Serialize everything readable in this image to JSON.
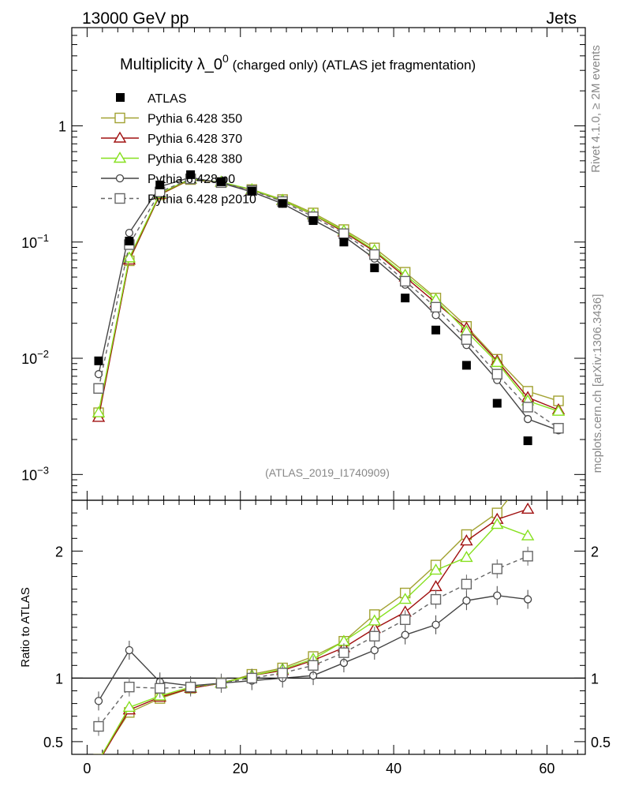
{
  "header": {
    "left": "13000 GeV pp",
    "right": "Jets"
  },
  "side": {
    "top": "Rivet 4.1.0, ≥ 2M events",
    "bottom": "mcplots.cern.ch [arXiv:1306.3436]"
  },
  "chart_data": {
    "type": "scatter",
    "title": "Multiplicity λ_0",
    "title_sup": "0",
    "title_suffix": " (charged only) (ATLAS jet fragmentation)",
    "analysis_tag": "(ATLAS_2019_I1740909)",
    "xlim": [
      -2,
      65
    ],
    "ylim_main": [
      0.0006,
      7
    ],
    "yscale_main": "log",
    "ylim_ratio": [
      0.4,
      2.4
    ],
    "ylabel_ratio": "Ratio to ATLAS",
    "x_ticks": [
      0,
      20,
      40,
      60
    ],
    "x_tick_labels": [
      "0",
      "20",
      "40",
      "60"
    ],
    "y_ticks_main": [
      1,
      0.1,
      0.01,
      0.001
    ],
    "y_tick_labels_main": [
      {
        "base": "1",
        "exp": ""
      },
      {
        "base": "10",
        "exp": "−1"
      },
      {
        "base": "10",
        "exp": "−2"
      },
      {
        "base": "10",
        "exp": "−3"
      }
    ],
    "y_ticks_ratio": [
      2,
      1,
      0.5
    ],
    "y_tick_labels_ratio": [
      "2",
      "1",
      "0.5"
    ],
    "x": [
      1.5,
      5.5,
      9.5,
      13.5,
      17.5,
      21.5,
      25.5,
      29.5,
      33.5,
      37.5,
      41.5,
      45.5,
      49.5,
      53.5,
      57.5,
      61.5
    ],
    "data": {
      "name": "ATLAS",
      "color": "#000000",
      "values": [
        0.0095,
        0.102,
        0.31,
        0.38,
        0.33,
        0.275,
        0.215,
        0.153,
        0.1,
        0.06,
        0.033,
        0.0175,
        0.0087,
        0.0041,
        0.00195,
        null
      ]
    },
    "series": [
      {
        "name": "Pythia 6.428 350",
        "color": "#a2a232",
        "marker": "square-open",
        "dash": "solid",
        "values": [
          0.0034,
          0.069,
          0.255,
          0.345,
          0.325,
          0.283,
          0.232,
          0.178,
          0.128,
          0.089,
          0.055,
          0.033,
          0.0188,
          0.0098,
          0.0052,
          0.0043
        ],
        "ratio": [
          0.36,
          0.73,
          0.84,
          0.92,
          0.96,
          1.03,
          1.08,
          1.17,
          1.29,
          1.5,
          1.67,
          1.89,
          2.13,
          2.3,
          2.6,
          null
        ]
      },
      {
        "name": "Pythia 6.428 370",
        "color": "#a01010",
        "marker": "triangle-open",
        "dash": "solid",
        "values": [
          0.0031,
          0.07,
          0.258,
          0.348,
          0.327,
          0.281,
          0.228,
          0.172,
          0.122,
          0.083,
          0.05,
          0.03,
          0.0182,
          0.0095,
          0.0046,
          0.0036
        ],
        "ratio": [
          0.34,
          0.75,
          0.85,
          0.92,
          0.96,
          1.02,
          1.06,
          1.14,
          1.24,
          1.39,
          1.52,
          1.72,
          2.08,
          2.25,
          2.33,
          null
        ]
      },
      {
        "name": "Pythia 6.428 380",
        "color": "#86e01e",
        "marker": "triangle-open",
        "dash": "solid",
        "values": [
          0.0034,
          0.073,
          0.262,
          0.35,
          0.328,
          0.283,
          0.229,
          0.173,
          0.125,
          0.085,
          0.052,
          0.032,
          0.017,
          0.0092,
          0.0043,
          0.0035
        ],
        "ratio": [
          0.35,
          0.77,
          0.86,
          0.93,
          0.96,
          1.02,
          1.07,
          1.15,
          1.29,
          1.45,
          1.62,
          1.85,
          1.95,
          2.21,
          2.12,
          null
        ]
      },
      {
        "name": "Pythia 6.428 p0",
        "color": "#444444",
        "marker": "circle-open",
        "dash": "solid",
        "values": [
          0.0073,
          0.12,
          0.3,
          0.36,
          0.322,
          0.27,
          0.214,
          0.155,
          0.112,
          0.072,
          0.043,
          0.0235,
          0.013,
          0.0065,
          0.003,
          0.0024
        ],
        "ratio": [
          0.82,
          1.22,
          0.97,
          0.94,
          0.96,
          0.98,
          1.0,
          1.02,
          1.12,
          1.22,
          1.34,
          1.42,
          1.61,
          1.65,
          1.62,
          null
        ]
      },
      {
        "name": "Pythia 6.428 p2010",
        "color": "#666666",
        "marker": "square-open",
        "dash": "dashed",
        "values": [
          0.0055,
          0.095,
          0.27,
          0.35,
          0.325,
          0.278,
          0.223,
          0.165,
          0.118,
          0.078,
          0.046,
          0.0275,
          0.0145,
          0.0073,
          0.0038,
          0.0025
        ],
        "ratio": [
          0.62,
          0.93,
          0.92,
          0.93,
          0.96,
          1.0,
          1.04,
          1.1,
          1.2,
          1.33,
          1.46,
          1.62,
          1.74,
          1.86,
          1.96,
          null
        ]
      }
    ]
  }
}
